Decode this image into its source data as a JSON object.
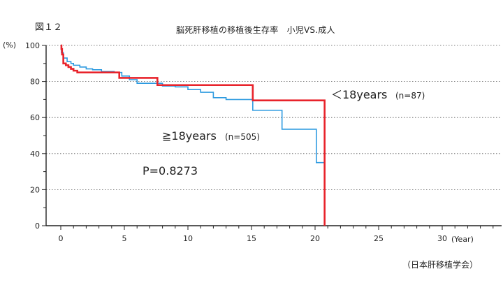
{
  "figure_label": "図１２",
  "source": "（日本肝移植学会）",
  "chart_data": {
    "type": "line",
    "title": "脳死肝移植の移植後生存率　小児VS.成人",
    "xlabel": "(Year)",
    "ylabel": "(%)",
    "xlim": [
      -1,
      35
    ],
    "ylim": [
      0,
      100
    ],
    "x_ticks": [
      0,
      5,
      10,
      15,
      20,
      25,
      30
    ],
    "y_ticks": [
      0,
      20,
      40,
      60,
      80,
      100
    ],
    "grid": "horizontal dotted",
    "series": [
      {
        "name": "＜18years",
        "label_note": "(n=87)",
        "color": "#e8232b",
        "step": [
          [
            0,
            100
          ],
          [
            0.05,
            98
          ],
          [
            0.1,
            95
          ],
          [
            0.2,
            90
          ],
          [
            0.4,
            89
          ],
          [
            0.6,
            88
          ],
          [
            0.8,
            87
          ],
          [
            1.0,
            86
          ],
          [
            1.3,
            85
          ],
          [
            4.5,
            85
          ],
          [
            4.6,
            82
          ],
          [
            7.5,
            82
          ],
          [
            7.6,
            78
          ],
          [
            15.0,
            78
          ],
          [
            15.1,
            69.5
          ],
          [
            20.7,
            69.5
          ],
          [
            20.75,
            0
          ]
        ]
      },
      {
        "name": "≧18years",
        "label_note": "(n=505)",
        "color": "#2e9be0",
        "step": [
          [
            0,
            100
          ],
          [
            0.05,
            96
          ],
          [
            0.2,
            93
          ],
          [
            0.5,
            91
          ],
          [
            0.8,
            90
          ],
          [
            1.0,
            89
          ],
          [
            1.5,
            88
          ],
          [
            2.0,
            87
          ],
          [
            2.5,
            86.5
          ],
          [
            3.2,
            85.5
          ],
          [
            4.2,
            85
          ],
          [
            4.8,
            83
          ],
          [
            5.4,
            81
          ],
          [
            6.0,
            79
          ],
          [
            8.0,
            77.5
          ],
          [
            9.0,
            77
          ],
          [
            10.0,
            75.5
          ],
          [
            11.0,
            74
          ],
          [
            12.0,
            71
          ],
          [
            13.0,
            70
          ],
          [
            15.0,
            70
          ],
          [
            15.1,
            64
          ],
          [
            17.3,
            64
          ],
          [
            17.4,
            53.5
          ],
          [
            20.0,
            53.5
          ],
          [
            20.1,
            35
          ],
          [
            20.7,
            35
          ]
        ]
      }
    ],
    "annotations": {
      "p_value": "P=0.8273"
    }
  }
}
